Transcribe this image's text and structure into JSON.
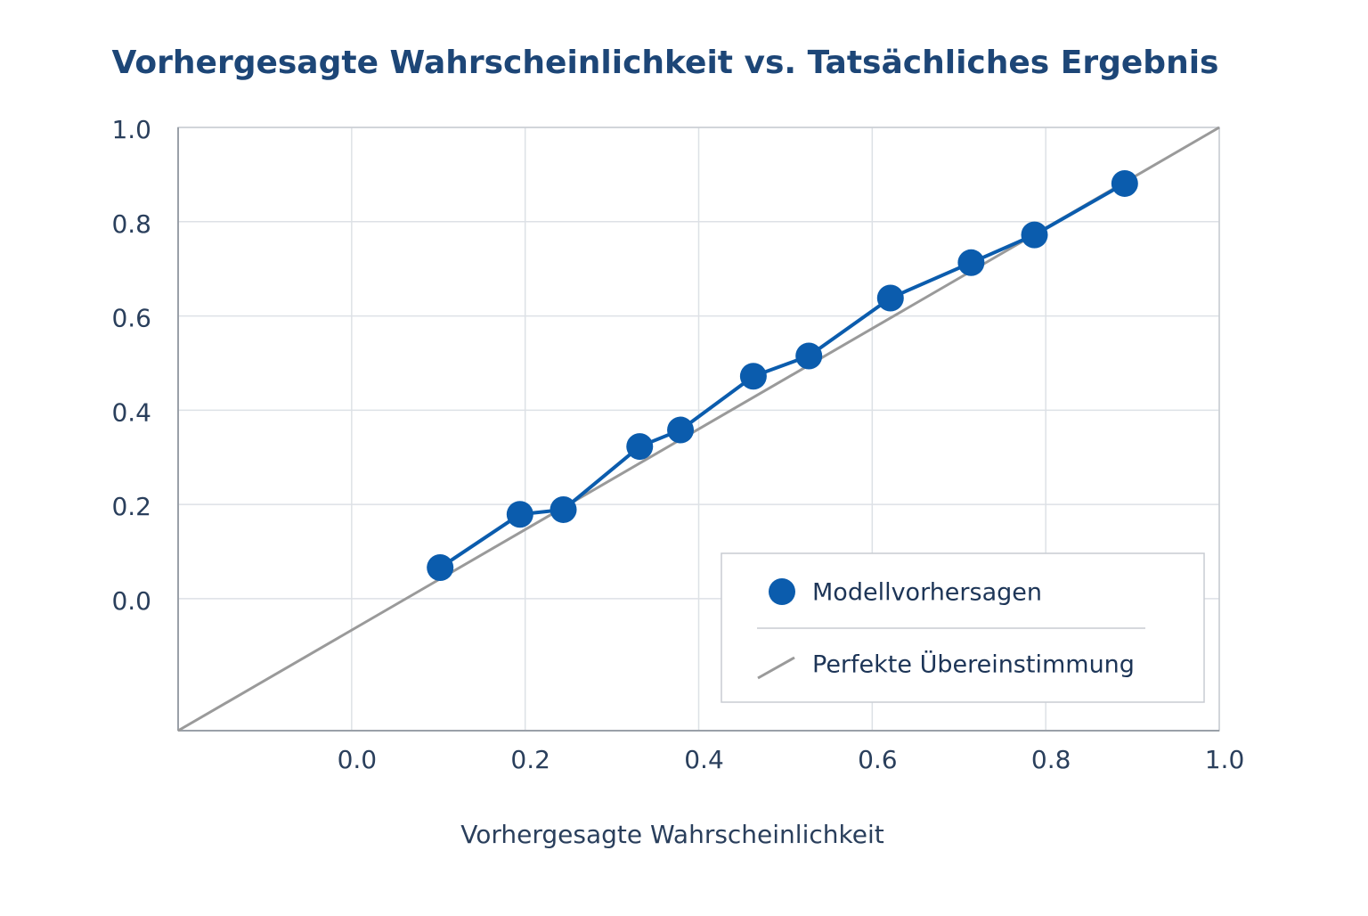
{
  "chart_data": {
    "type": "line",
    "title": "Vorhergesagte Wahrscheinlichkeit vs. Tatsächliches Ergebnis",
    "x_label": "Vorhergesagte Wahrscheinlichkeit",
    "xlim": [
      -0.2,
      1.0
    ],
    "xticks": [
      {
        "value": 0,
        "label": "0.0"
      },
      0.2,
      0.4,
      0.6,
      0.8,
      {
        "value": 1,
        "label": "1.0"
      }
    ],
    "ylim": [
      -0.28,
      1.0
    ],
    "yticks": [
      {
        "value": 0,
        "label": "0.0"
      },
      0.2,
      0.4,
      0.6,
      0.8,
      {
        "value": 1,
        "label": "1.0"
      }
    ],
    "grid": true,
    "legend": "lower right",
    "series": [
      {
        "name": "Modellvorhersagen",
        "color": "#0b5cad",
        "x": [
          0.102,
          0.194,
          0.244,
          0.332,
          0.379,
          0.463,
          0.527,
          0.621,
          0.714,
          0.787,
          0.891
        ],
        "values": [
          0.066,
          0.179,
          0.189,
          0.323,
          0.358,
          0.472,
          0.515,
          0.638,
          0.713,
          0.772,
          0.881
        ]
      },
      {
        "name": "Perfekte Übereinstimmung",
        "color": "#9a9a9a",
        "x": [
          -0.2,
          1.0
        ],
        "values": [
          -0.28,
          1.0
        ]
      }
    ]
  }
}
